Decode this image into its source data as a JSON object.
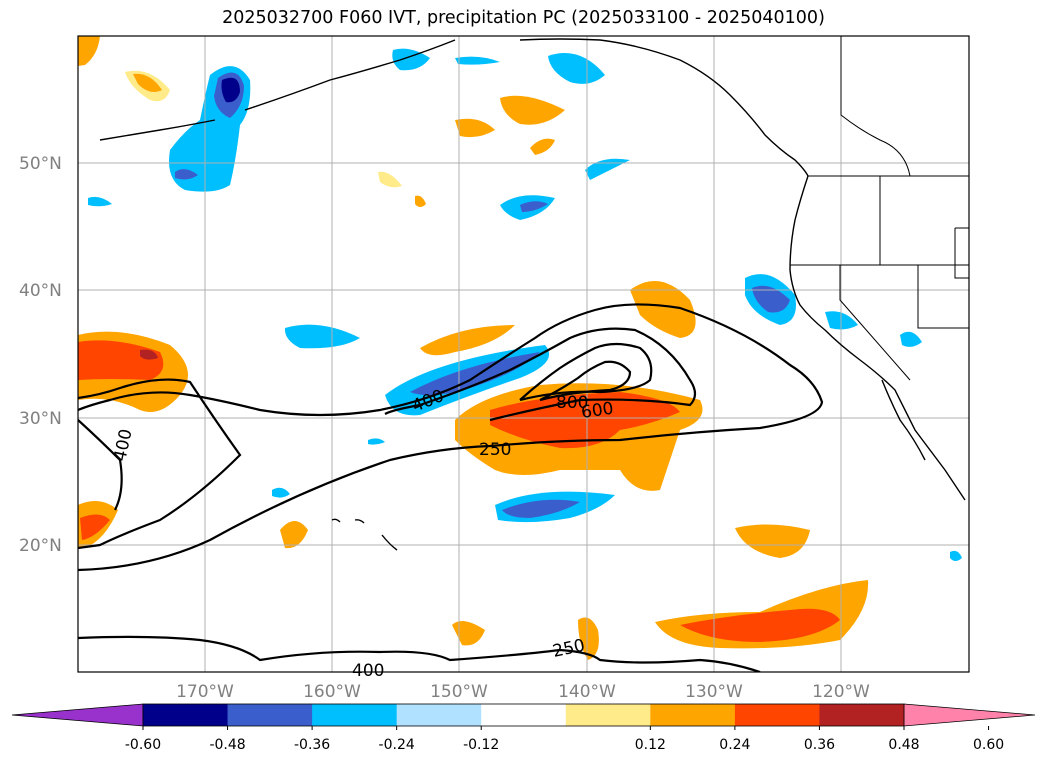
{
  "title": "2025032700 F060 IVT, precipitation PC (2025033100 - 2025040100)",
  "latitude_labels": [
    {
      "id": "lat-50",
      "text": "50°N",
      "lat": 50
    },
    {
      "id": "lat-40",
      "text": "40°N",
      "lat": 40
    },
    {
      "id": "lat-30",
      "text": "30°N",
      "lat": 30
    },
    {
      "id": "lat-20",
      "text": "20°N",
      "lat": 20
    }
  ],
  "longitude_labels": [
    {
      "id": "lon-170",
      "text": "170°W",
      "lon": -170
    },
    {
      "id": "lon-160",
      "text": "160°W",
      "lon": -160
    },
    {
      "id": "lon-150",
      "text": "150°W",
      "lon": -150
    },
    {
      "id": "lon-140",
      "text": "140°W",
      "lon": -140
    },
    {
      "id": "lon-130",
      "text": "130°W",
      "lon": -130
    },
    {
      "id": "lon-120",
      "text": "120°W",
      "lon": -120
    }
  ],
  "colorbar": {
    "ticks": [
      "-0.60",
      "-0.48",
      "-0.36",
      "-0.24",
      "-0.12",
      "0.12",
      "0.24",
      "0.36",
      "0.48",
      "0.60"
    ],
    "colors": [
      "#9932cc",
      "#00008b",
      "#3a5fcd",
      "#00bfff",
      "#b0e2ff",
      "#ffffff",
      "#ffeb8a",
      "#ffa500",
      "#ff4500",
      "#b22222",
      "#ff82ab"
    ]
  },
  "ivt_contour_labels": [
    {
      "id": "ivt-800",
      "text": "800"
    },
    {
      "id": "ivt-600",
      "text": "600"
    },
    {
      "id": "ivt-400-center",
      "text": "400"
    },
    {
      "id": "ivt-250-center",
      "text": "250"
    },
    {
      "id": "ivt-400-west",
      "text": "400"
    },
    {
      "id": "ivt-250-south",
      "text": "250"
    },
    {
      "id": "ivt-400-south",
      "text": "400"
    }
  ],
  "colors": {
    "grid": "#b0b0b0",
    "axis_text": "#808080",
    "contour": "#000000"
  }
}
